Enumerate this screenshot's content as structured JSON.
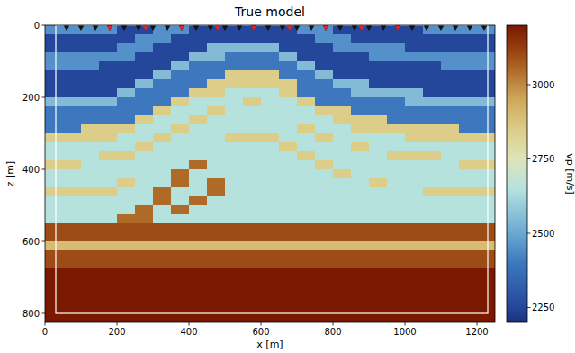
{
  "chart_data": {
    "type": "heatmap",
    "title": "True model",
    "x_label": "x [m]",
    "y_label": "z [m]",
    "xlim": [
      0,
      1250
    ],
    "ylim": [
      825,
      0
    ],
    "xticks": [
      0,
      200,
      400,
      600,
      800,
      1000,
      1200
    ],
    "yticks": [
      0,
      200,
      400,
      600,
      800
    ],
    "grid": false,
    "x": [
      25,
      75,
      125,
      175,
      225,
      275,
      325,
      375,
      425,
      475,
      525,
      575,
      625,
      675,
      725,
      775,
      825,
      875,
      925,
      975,
      1025,
      1075,
      1125,
      1175,
      1225
    ],
    "y": [
      12.5,
      37.5,
      62.5,
      87.5,
      112.5,
      137.5,
      162.5,
      187.5,
      212.5,
      237.5,
      262.5,
      287.5,
      312.5,
      337.5,
      362.5,
      387.5,
      412.5,
      437.5,
      462.5,
      487.5,
      512.5,
      537.5,
      562.5,
      587.5,
      612.5,
      637.5,
      662.5,
      687.5,
      712.5,
      737.5,
      762.5,
      787.5,
      812.5
    ],
    "cells": [
      [
        2450,
        2450,
        2450,
        2450,
        2250,
        2250,
        2450,
        2450,
        2250,
        2250,
        2250,
        2250,
        2250,
        2250,
        2450,
        2450,
        2250,
        2250,
        2250,
        2250,
        2250,
        2450,
        2450,
        2450,
        2450
      ],
      [
        2250,
        2250,
        2250,
        2250,
        2250,
        2450,
        2450,
        2250,
        2250,
        2250,
        2250,
        2250,
        2250,
        2250,
        2250,
        2450,
        2450,
        2250,
        2250,
        2250,
        2250,
        2250,
        2250,
        2250,
        2250
      ],
      [
        2250,
        2250,
        2250,
        2250,
        2450,
        2450,
        2250,
        2250,
        2250,
        2550,
        2550,
        2550,
        2550,
        2250,
        2250,
        2250,
        2450,
        2450,
        2450,
        2450,
        2250,
        2250,
        2250,
        2250,
        2250
      ],
      [
        2450,
        2450,
        2450,
        2450,
        2450,
        2250,
        2250,
        2250,
        2550,
        2550,
        2400,
        2400,
        2400,
        2550,
        2250,
        2250,
        2250,
        2250,
        2450,
        2450,
        2450,
        2450,
        2450,
        2450,
        2450
      ],
      [
        2450,
        2450,
        2450,
        2250,
        2250,
        2250,
        2250,
        2550,
        2400,
        2400,
        2400,
        2400,
        2400,
        2400,
        2550,
        2250,
        2250,
        2250,
        2250,
        2250,
        2250,
        2250,
        2450,
        2450,
        2450
      ],
      [
        2250,
        2250,
        2250,
        2250,
        2250,
        2250,
        2550,
        2400,
        2400,
        2400,
        2850,
        2850,
        2850,
        2400,
        2400,
        2550,
        2250,
        2250,
        2250,
        2250,
        2250,
        2250,
        2250,
        2250,
        2250
      ],
      [
        2250,
        2250,
        2250,
        2250,
        2250,
        2550,
        2400,
        2400,
        2400,
        2850,
        2850,
        2850,
        2850,
        2850,
        2400,
        2400,
        2550,
        2550,
        2250,
        2250,
        2250,
        2250,
        2250,
        2250,
        2250
      ],
      [
        2250,
        2250,
        2250,
        2250,
        2550,
        2400,
        2400,
        2400,
        2850,
        2850,
        2650,
        2650,
        2650,
        2850,
        2400,
        2400,
        2400,
        2550,
        2550,
        2550,
        2550,
        2250,
        2250,
        2250,
        2250
      ],
      [
        2550,
        2550,
        2550,
        2550,
        2400,
        2400,
        2400,
        2850,
        2650,
        2650,
        2650,
        2850,
        2650,
        2650,
        2850,
        2400,
        2400,
        2400,
        2400,
        2400,
        2550,
        2550,
        2550,
        2550,
        2550
      ],
      [
        2400,
        2400,
        2400,
        2400,
        2400,
        2400,
        2850,
        2650,
        2650,
        2850,
        2650,
        2650,
        2650,
        2650,
        2650,
        2850,
        2850,
        2400,
        2400,
        2400,
        2400,
        2400,
        2400,
        2400,
        2400
      ],
      [
        2400,
        2400,
        2400,
        2400,
        2400,
        2850,
        2650,
        2650,
        2850,
        2650,
        2650,
        2650,
        2650,
        2650,
        2650,
        2650,
        2850,
        2850,
        2850,
        2400,
        2400,
        2400,
        2400,
        2400,
        2400
      ],
      [
        2400,
        2400,
        2850,
        2850,
        2850,
        2650,
        2650,
        2850,
        2650,
        2650,
        2650,
        2650,
        2650,
        2650,
        2850,
        2650,
        2650,
        2850,
        2850,
        2850,
        2850,
        2850,
        2850,
        2400,
        2400
      ],
      [
        2850,
        2850,
        2850,
        2850,
        2650,
        2650,
        2850,
        2650,
        2650,
        2650,
        2850,
        2850,
        2850,
        2650,
        2650,
        2850,
        2650,
        2650,
        2650,
        2650,
        2850,
        2850,
        2850,
        2850,
        2850
      ],
      [
        2650,
        2650,
        2650,
        2650,
        2650,
        2850,
        2650,
        2650,
        2650,
        2650,
        2650,
        2650,
        2650,
        2850,
        2650,
        2650,
        2650,
        2850,
        2650,
        2650,
        2650,
        2650,
        2650,
        2650,
        2650
      ],
      [
        2650,
        2650,
        2650,
        2850,
        2850,
        2650,
        2650,
        2650,
        2650,
        2650,
        2650,
        2650,
        2650,
        2650,
        2850,
        2650,
        2650,
        2650,
        2650,
        2850,
        2850,
        2850,
        2650,
        2650,
        2650
      ],
      [
        2850,
        2850,
        2650,
        2650,
        2650,
        2650,
        2650,
        2650,
        3050,
        2650,
        2650,
        2650,
        2650,
        2650,
        2650,
        2850,
        2650,
        2650,
        2650,
        2650,
        2650,
        2650,
        2650,
        2850,
        2850
      ],
      [
        2650,
        2650,
        2650,
        2650,
        2650,
        2650,
        2650,
        3050,
        2650,
        2650,
        2650,
        2650,
        2650,
        2650,
        2650,
        2650,
        2850,
        2650,
        2650,
        2650,
        2650,
        2650,
        2650,
        2650,
        2650
      ],
      [
        2650,
        2650,
        2650,
        2650,
        2850,
        2650,
        2650,
        3050,
        2650,
        3050,
        2650,
        2650,
        2650,
        2650,
        2650,
        2650,
        2650,
        2650,
        2850,
        2650,
        2650,
        2650,
        2650,
        2650,
        2650
      ],
      [
        2850,
        2850,
        2850,
        2850,
        2650,
        2650,
        3050,
        2650,
        2650,
        3050,
        2650,
        2650,
        2650,
        2650,
        2650,
        2650,
        2650,
        2650,
        2650,
        2650,
        2650,
        2850,
        2850,
        2850,
        2850
      ],
      [
        2650,
        2650,
        2650,
        2650,
        2650,
        2650,
        3050,
        2650,
        3050,
        2650,
        2650,
        2650,
        2650,
        2650,
        2650,
        2650,
        2650,
        2650,
        2650,
        2650,
        2650,
        2650,
        2650,
        2650,
        2650
      ],
      [
        2650,
        2650,
        2650,
        2650,
        2650,
        3050,
        2650,
        3050,
        2650,
        2650,
        2650,
        2650,
        2650,
        2650,
        2650,
        2650,
        2650,
        2650,
        2650,
        2650,
        2650,
        2650,
        2650,
        2650,
        2650
      ],
      [
        2650,
        2650,
        2650,
        2650,
        3050,
        3050,
        2650,
        2650,
        2650,
        2650,
        2650,
        2650,
        2650,
        2650,
        2650,
        2650,
        2650,
        2650,
        2650,
        2650,
        2650,
        2650,
        2650,
        2650,
        2650
      ],
      [
        3100,
        3100,
        3100,
        3100,
        3100,
        3100,
        3100,
        3100,
        3100,
        3100,
        3100,
        3100,
        3100,
        3100,
        3100,
        3100,
        3100,
        3100,
        3100,
        3100,
        3100,
        3100,
        3100,
        3100,
        3100
      ],
      [
        3100,
        3100,
        3100,
        3100,
        3100,
        3100,
        3100,
        3100,
        3100,
        3100,
        3100,
        3100,
        3100,
        3100,
        3100,
        3100,
        3100,
        3100,
        3100,
        3100,
        3100,
        3100,
        3100,
        3100,
        3100
      ],
      [
        2900,
        2900,
        2900,
        2900,
        2900,
        2900,
        2900,
        2900,
        2900,
        2900,
        2900,
        2900,
        2900,
        2900,
        2900,
        2900,
        2900,
        2900,
        2900,
        2900,
        2900,
        2900,
        2900,
        2900,
        2900
      ],
      [
        3100,
        3100,
        3100,
        3100,
        3100,
        3100,
        3100,
        3100,
        3100,
        3100,
        3100,
        3100,
        3100,
        3100,
        3100,
        3100,
        3100,
        3100,
        3100,
        3100,
        3100,
        3100,
        3100,
        3100,
        3100
      ],
      [
        3100,
        3100,
        3100,
        3100,
        3100,
        3100,
        3100,
        3100,
        3100,
        3100,
        3100,
        3100,
        3100,
        3100,
        3100,
        3100,
        3100,
        3100,
        3100,
        3100,
        3100,
        3100,
        3100,
        3100,
        3100
      ],
      [
        3200,
        3200,
        3200,
        3200,
        3200,
        3200,
        3200,
        3200,
        3200,
        3200,
        3200,
        3200,
        3200,
        3200,
        3200,
        3200,
        3200,
        3200,
        3200,
        3200,
        3200,
        3200,
        3200,
        3200,
        3200
      ],
      [
        3200,
        3200,
        3200,
        3200,
        3200,
        3200,
        3200,
        3200,
        3200,
        3200,
        3200,
        3200,
        3200,
        3200,
        3200,
        3200,
        3200,
        3200,
        3200,
        3200,
        3200,
        3200,
        3200,
        3200,
        3200
      ],
      [
        3200,
        3200,
        3200,
        3200,
        3200,
        3200,
        3200,
        3200,
        3200,
        3200,
        3200,
        3200,
        3200,
        3200,
        3200,
        3200,
        3200,
        3200,
        3200,
        3200,
        3200,
        3200,
        3200,
        3200,
        3200
      ],
      [
        3200,
        3200,
        3200,
        3200,
        3200,
        3200,
        3200,
        3200,
        3200,
        3200,
        3200,
        3200,
        3200,
        3200,
        3200,
        3200,
        3200,
        3200,
        3200,
        3200,
        3200,
        3200,
        3200,
        3200,
        3200
      ],
      [
        3200,
        3200,
        3200,
        3200,
        3200,
        3200,
        3200,
        3200,
        3200,
        3200,
        3200,
        3200,
        3200,
        3200,
        3200,
        3200,
        3200,
        3200,
        3200,
        3200,
        3200,
        3200,
        3200,
        3200,
        3200
      ],
      [
        3200,
        3200,
        3200,
        3200,
        3200,
        3200,
        3200,
        3200,
        3200,
        3200,
        3200,
        3200,
        3200,
        3200,
        3200,
        3200,
        3200,
        3200,
        3200,
        3200,
        3200,
        3200,
        3200,
        3200,
        3200
      ]
    ],
    "colorbar": {
      "label": "vp [m/s]",
      "range": [
        2200,
        3200
      ],
      "ticks": [
        2250,
        2500,
        2750,
        3000
      ]
    },
    "receivers": [
      60,
      100,
      140,
      180,
      220,
      260,
      300,
      340,
      380,
      420,
      460,
      500,
      540,
      580,
      620,
      660,
      700,
      740,
      780,
      820,
      860,
      900,
      940,
      980,
      1020,
      1060,
      1100,
      1140,
      1180,
      1220
    ],
    "sources": [
      180,
      280,
      380,
      480,
      580,
      680,
      780,
      880,
      980
    ],
    "domain": {
      "x": [
        30,
        1230
      ],
      "z": [
        0,
        800
      ]
    }
  }
}
